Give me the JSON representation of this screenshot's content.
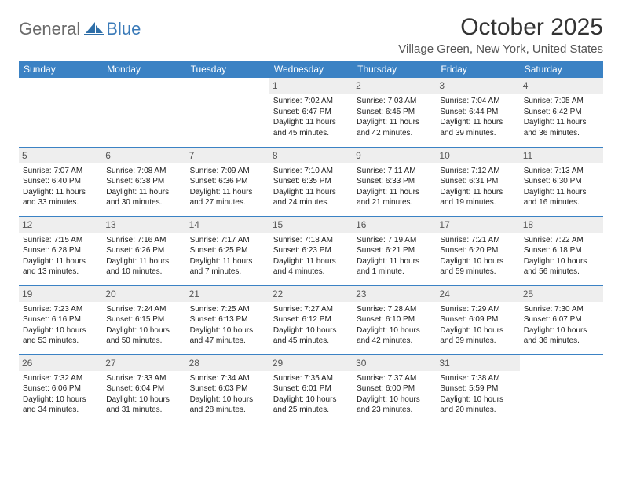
{
  "logo": {
    "textGeneral": "General",
    "textBlue": "Blue"
  },
  "header": {
    "monthTitle": "October 2025",
    "location": "Village Green, New York, United States"
  },
  "colors": {
    "headerBg": "#3b82c4",
    "headerText": "#ffffff",
    "dayNumBg": "#eeeeee",
    "border": "#3b82c4"
  },
  "dayNames": [
    "Sunday",
    "Monday",
    "Tuesday",
    "Wednesday",
    "Thursday",
    "Friday",
    "Saturday"
  ],
  "weeks": [
    [
      {
        "blank": true
      },
      {
        "blank": true
      },
      {
        "blank": true
      },
      {
        "num": "1",
        "sunrise": "7:02 AM",
        "sunset": "6:47 PM",
        "daylight": "11 hours and 45 minutes."
      },
      {
        "num": "2",
        "sunrise": "7:03 AM",
        "sunset": "6:45 PM",
        "daylight": "11 hours and 42 minutes."
      },
      {
        "num": "3",
        "sunrise": "7:04 AM",
        "sunset": "6:44 PM",
        "daylight": "11 hours and 39 minutes."
      },
      {
        "num": "4",
        "sunrise": "7:05 AM",
        "sunset": "6:42 PM",
        "daylight": "11 hours and 36 minutes."
      }
    ],
    [
      {
        "num": "5",
        "sunrise": "7:07 AM",
        "sunset": "6:40 PM",
        "daylight": "11 hours and 33 minutes."
      },
      {
        "num": "6",
        "sunrise": "7:08 AM",
        "sunset": "6:38 PM",
        "daylight": "11 hours and 30 minutes."
      },
      {
        "num": "7",
        "sunrise": "7:09 AM",
        "sunset": "6:36 PM",
        "daylight": "11 hours and 27 minutes."
      },
      {
        "num": "8",
        "sunrise": "7:10 AM",
        "sunset": "6:35 PM",
        "daylight": "11 hours and 24 minutes."
      },
      {
        "num": "9",
        "sunrise": "7:11 AM",
        "sunset": "6:33 PM",
        "daylight": "11 hours and 21 minutes."
      },
      {
        "num": "10",
        "sunrise": "7:12 AM",
        "sunset": "6:31 PM",
        "daylight": "11 hours and 19 minutes."
      },
      {
        "num": "11",
        "sunrise": "7:13 AM",
        "sunset": "6:30 PM",
        "daylight": "11 hours and 16 minutes."
      }
    ],
    [
      {
        "num": "12",
        "sunrise": "7:15 AM",
        "sunset": "6:28 PM",
        "daylight": "11 hours and 13 minutes."
      },
      {
        "num": "13",
        "sunrise": "7:16 AM",
        "sunset": "6:26 PM",
        "daylight": "11 hours and 10 minutes."
      },
      {
        "num": "14",
        "sunrise": "7:17 AM",
        "sunset": "6:25 PM",
        "daylight": "11 hours and 7 minutes."
      },
      {
        "num": "15",
        "sunrise": "7:18 AM",
        "sunset": "6:23 PM",
        "daylight": "11 hours and 4 minutes."
      },
      {
        "num": "16",
        "sunrise": "7:19 AM",
        "sunset": "6:21 PM",
        "daylight": "11 hours and 1 minute."
      },
      {
        "num": "17",
        "sunrise": "7:21 AM",
        "sunset": "6:20 PM",
        "daylight": "10 hours and 59 minutes."
      },
      {
        "num": "18",
        "sunrise": "7:22 AM",
        "sunset": "6:18 PM",
        "daylight": "10 hours and 56 minutes."
      }
    ],
    [
      {
        "num": "19",
        "sunrise": "7:23 AM",
        "sunset": "6:16 PM",
        "daylight": "10 hours and 53 minutes."
      },
      {
        "num": "20",
        "sunrise": "7:24 AM",
        "sunset": "6:15 PM",
        "daylight": "10 hours and 50 minutes."
      },
      {
        "num": "21",
        "sunrise": "7:25 AM",
        "sunset": "6:13 PM",
        "daylight": "10 hours and 47 minutes."
      },
      {
        "num": "22",
        "sunrise": "7:27 AM",
        "sunset": "6:12 PM",
        "daylight": "10 hours and 45 minutes."
      },
      {
        "num": "23",
        "sunrise": "7:28 AM",
        "sunset": "6:10 PM",
        "daylight": "10 hours and 42 minutes."
      },
      {
        "num": "24",
        "sunrise": "7:29 AM",
        "sunset": "6:09 PM",
        "daylight": "10 hours and 39 minutes."
      },
      {
        "num": "25",
        "sunrise": "7:30 AM",
        "sunset": "6:07 PM",
        "daylight": "10 hours and 36 minutes."
      }
    ],
    [
      {
        "num": "26",
        "sunrise": "7:32 AM",
        "sunset": "6:06 PM",
        "daylight": "10 hours and 34 minutes."
      },
      {
        "num": "27",
        "sunrise": "7:33 AM",
        "sunset": "6:04 PM",
        "daylight": "10 hours and 31 minutes."
      },
      {
        "num": "28",
        "sunrise": "7:34 AM",
        "sunset": "6:03 PM",
        "daylight": "10 hours and 28 minutes."
      },
      {
        "num": "29",
        "sunrise": "7:35 AM",
        "sunset": "6:01 PM",
        "daylight": "10 hours and 25 minutes."
      },
      {
        "num": "30",
        "sunrise": "7:37 AM",
        "sunset": "6:00 PM",
        "daylight": "10 hours and 23 minutes."
      },
      {
        "num": "31",
        "sunrise": "7:38 AM",
        "sunset": "5:59 PM",
        "daylight": "10 hours and 20 minutes."
      },
      {
        "blank": true
      }
    ]
  ],
  "labels": {
    "sunrise": "Sunrise:",
    "sunset": "Sunset:",
    "daylight": "Daylight:"
  }
}
